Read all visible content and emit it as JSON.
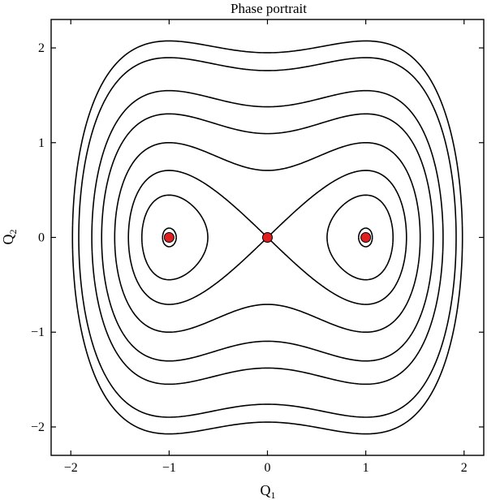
{
  "chart_data": {
    "type": "contour",
    "title": "Phase portrait",
    "xlabel": {
      "base": "Q",
      "sub": "1"
    },
    "ylabel": {
      "base": "Q",
      "sub": "2"
    },
    "xlim": [
      -2.2,
      2.2
    ],
    "ylim": [
      -2.3,
      2.3
    ],
    "xticks": [
      -2,
      -1,
      0,
      1,
      2
    ],
    "yticks": [
      -2,
      -1,
      0,
      1,
      2
    ],
    "xtick_labels": [
      "−2",
      "−1",
      "0",
      "1",
      "2"
    ],
    "ytick_labels": [
      "−2",
      "−1",
      "0",
      "1",
      "2"
    ],
    "grid": false,
    "field": "H = Q2^2/2 - Q1^2/2 + Q1^4/4",
    "levels": [
      -0.245,
      -0.15,
      0.0,
      0.25,
      0.6,
      0.95,
      1.55,
      1.9
    ],
    "equilibria": [
      {
        "q1": -1,
        "q2": 0
      },
      {
        "q1": 0,
        "q2": 0
      },
      {
        "q1": 1,
        "q2": 0
      }
    ],
    "equilibrium_color": "#e02020",
    "line_color": "#000000"
  }
}
